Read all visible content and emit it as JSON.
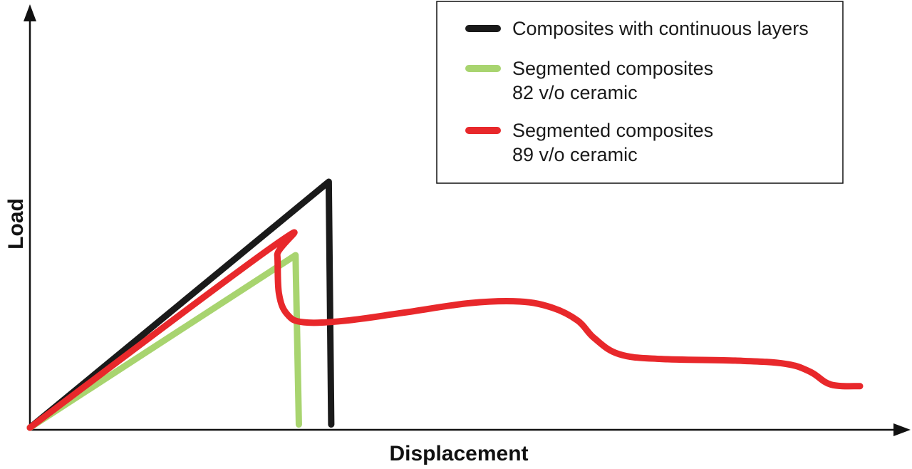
{
  "chart_data": {
    "type": "line",
    "xlabel": "Displacement",
    "ylabel": "Load",
    "xlim": [
      0,
      100
    ],
    "ylim": [
      0,
      100
    ],
    "grid": false,
    "legend_position": "top-right",
    "series": [
      {
        "name": "Composites with continuous layers",
        "color": "#1a1a1a",
        "x": [
          0,
          36,
          36.3
        ],
        "y": [
          0,
          77,
          1
        ]
      },
      {
        "name": "Segmented composites\n82 v/o ceramic",
        "color": "#a8d46f",
        "x": [
          0,
          32,
          32.4
        ],
        "y": [
          0,
          54,
          1
        ]
      },
      {
        "name": "Segmented composites\n89 v/o ceramic",
        "color": "#e8282b",
        "x": [
          0,
          29.4,
          29.8,
          30,
          31,
          33,
          38,
          45,
          53,
          59,
          63,
          66,
          68,
          71,
          76,
          85,
          91,
          94,
          96.5,
          100
        ],
        "y": [
          0,
          57,
          54,
          42,
          35.5,
          33,
          33.5,
          36,
          39,
          39.5,
          37.5,
          33.5,
          28,
          23,
          21.5,
          21,
          20,
          17.5,
          13.5,
          13
        ]
      }
    ]
  }
}
